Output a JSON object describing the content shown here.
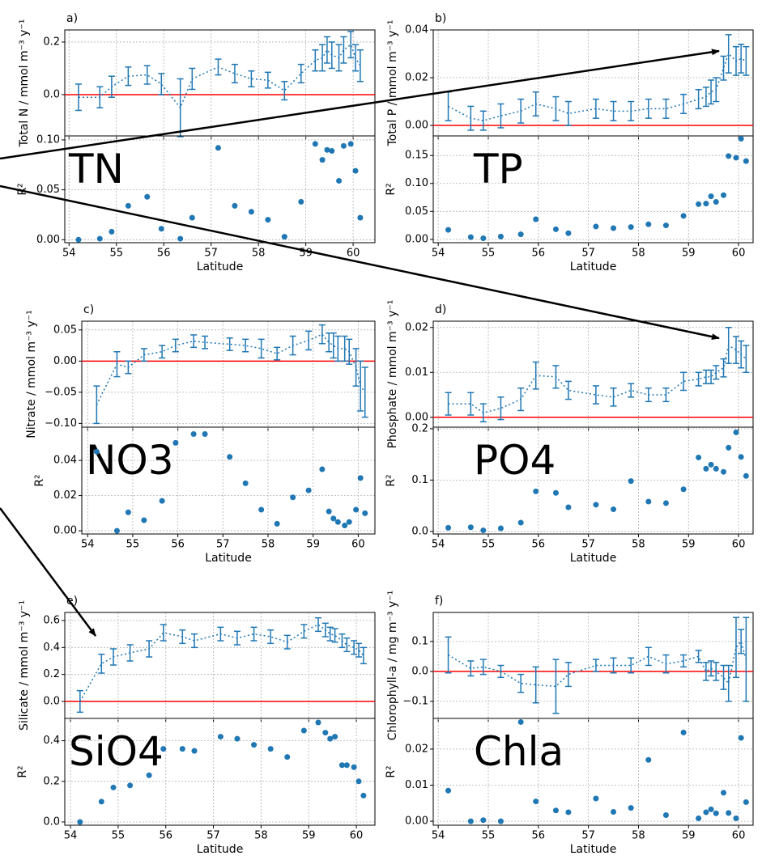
{
  "chart_data": [
    {
      "type": "errorbar",
      "panel_label": "a)",
      "ylabel": "Total N / mmol m⁻³ y⁻¹",
      "color": "#1f77b4",
      "hline": 0,
      "hline_color": "#ff0000",
      "grid": true,
      "x": [
        54.2,
        54.65,
        54.9,
        55.25,
        55.65,
        55.95,
        56.35,
        56.6,
        57.15,
        57.5,
        57.85,
        58.2,
        58.55,
        58.9,
        59.2,
        59.35,
        59.45,
        59.55,
        59.7,
        59.8,
        59.95,
        60.05,
        60.15
      ],
      "values": [
        -0.01,
        -0.01,
        0.03,
        0.07,
        0.075,
        0.04,
        -0.05,
        0.06,
        0.105,
        0.08,
        0.06,
        0.055,
        0.015,
        0.08,
        0.13,
        0.14,
        0.17,
        0.15,
        0.14,
        0.17,
        0.19,
        0.14,
        0.11
      ],
      "errors": [
        0.05,
        0.04,
        0.04,
        0.035,
        0.035,
        0.04,
        0.11,
        0.04,
        0.03,
        0.035,
        0.03,
        0.03,
        0.035,
        0.035,
        0.04,
        0.05,
        0.05,
        0.05,
        0.05,
        0.05,
        0.05,
        0.05,
        0.06
      ],
      "xlim": [
        53.91,
        60.46
      ],
      "xticks": [
        54,
        55,
        56,
        57,
        58,
        59,
        60
      ],
      "ylim": [
        -0.157,
        0.246
      ],
      "yticks": [
        {
          "value": 0,
          "label": "0.0"
        },
        0.2
      ]
    },
    {
      "type": "scatter",
      "ylabel": "R²",
      "xlabel": "Latitude",
      "annotation": "TN",
      "color": "#1f77b4",
      "grid": true,
      "x": [
        54.2,
        54.65,
        54.9,
        55.25,
        55.65,
        55.95,
        56.35,
        56.6,
        57.15,
        57.5,
        57.85,
        58.2,
        58.55,
        58.9,
        59.2,
        59.35,
        59.45,
        59.55,
        59.7,
        59.8,
        59.95,
        60.05,
        60.15
      ],
      "values": [
        0.0,
        0.001,
        0.008,
        0.034,
        0.043,
        0.011,
        0.001,
        0.022,
        0.092,
        0.034,
        0.028,
        0.02,
        0.003,
        0.038,
        0.096,
        0.08,
        0.09,
        0.089,
        0.059,
        0.094,
        0.096,
        0.069,
        0.022
      ],
      "xlim": [
        53.91,
        60.46
      ],
      "xticks": [
        54,
        55,
        56,
        57,
        58,
        59,
        60
      ],
      "ylim": [
        -0.003,
        0.104
      ],
      "yticks": [
        {
          "value": 0,
          "label": "0.00"
        },
        0.05,
        {
          "value": 0.1,
          "label": "0.10"
        }
      ]
    },
    {
      "type": "errorbar",
      "panel_label": "b)",
      "ylabel": "Total P / mmol m⁻³ y⁻¹",
      "color": "#1f77b4",
      "hline": 0,
      "hline_color": "#ff0000",
      "grid": true,
      "x": [
        54.2,
        54.65,
        54.9,
        55.25,
        55.65,
        55.95,
        56.35,
        56.6,
        57.15,
        57.5,
        57.85,
        58.2,
        58.55,
        58.9,
        59.2,
        59.35,
        59.45,
        59.55,
        59.7,
        59.8,
        59.95,
        60.05,
        60.15
      ],
      "values": [
        0.008,
        0.003,
        0.002,
        0.004,
        0.006,
        0.009,
        0.007,
        0.005,
        0.007,
        0.006,
        0.006,
        0.007,
        0.007,
        0.009,
        0.011,
        0.012,
        0.014,
        0.015,
        0.024,
        0.03,
        0.027,
        0.028,
        0.027
      ],
      "errors": [
        0.006,
        0.005,
        0.004,
        0.005,
        0.005,
        0.005,
        0.005,
        0.005,
        0.004,
        0.004,
        0.004,
        0.004,
        0.004,
        0.004,
        0.004,
        0.004,
        0.005,
        0.005,
        0.005,
        0.008,
        0.006,
        0.006,
        0.006
      ],
      "xlim": [
        53.9,
        60.29
      ],
      "xticks": [
        54,
        55,
        56,
        57,
        58,
        59,
        60
      ],
      "ylim": [
        -0.0044,
        0.04
      ],
      "yticks": [
        {
          "value": 0,
          "label": "0.00"
        },
        0.02,
        0.04
      ]
    },
    {
      "type": "scatter",
      "ylabel": "R²",
      "xlabel": "Latitude",
      "annotation": "TP",
      "color": "#1f77b4",
      "grid": true,
      "x": [
        54.2,
        54.65,
        54.9,
        55.25,
        55.65,
        55.95,
        56.35,
        56.6,
        57.15,
        57.5,
        57.85,
        58.2,
        58.55,
        58.9,
        59.2,
        59.35,
        59.45,
        59.55,
        59.7,
        59.8,
        59.95,
        60.05,
        60.15
      ],
      "values": [
        0.017,
        0.004,
        0.002,
        0.005,
        0.009,
        0.036,
        0.018,
        0.011,
        0.023,
        0.02,
        0.022,
        0.027,
        0.025,
        0.042,
        0.063,
        0.064,
        0.077,
        0.067,
        0.079,
        0.149,
        0.146,
        0.18,
        0.14
      ],
      "xlim": [
        53.9,
        60.29
      ],
      "xticks": [
        54,
        55,
        56,
        57,
        58,
        59,
        60
      ],
      "ylim": [
        -0.006,
        0.185
      ],
      "yticks": [
        {
          "value": 0,
          "label": "0.00"
        },
        0.05,
        {
          "value": 0.1,
          "label": "0.10"
        },
        0.15
      ]
    },
    {
      "type": "errorbar",
      "panel_label": "c)",
      "ylabel": "Nitrate / mmol m⁻³ y⁻¹",
      "color": "#1f77b4",
      "hline": 0,
      "hline_color": "#ff0000",
      "grid": true,
      "x": [
        54.2,
        54.65,
        54.9,
        55.25,
        55.65,
        55.95,
        56.35,
        56.6,
        57.15,
        57.5,
        57.85,
        58.2,
        58.55,
        58.9,
        59.2,
        59.35,
        59.45,
        59.55,
        59.7,
        59.8,
        59.95,
        60.05,
        60.15
      ],
      "values": [
        -0.07,
        -0.005,
        -0.01,
        0.01,
        0.015,
        0.025,
        0.032,
        0.03,
        0.027,
        0.025,
        0.02,
        0.012,
        0.025,
        0.033,
        0.043,
        0.03,
        0.025,
        0.02,
        0.02,
        0.015,
        -0.01,
        -0.04,
        -0.05
      ],
      "errors": [
        0.03,
        0.02,
        0.01,
        0.01,
        0.01,
        0.01,
        0.01,
        0.01,
        0.01,
        0.01,
        0.015,
        0.01,
        0.015,
        0.015,
        0.015,
        0.015,
        0.02,
        0.02,
        0.02,
        0.02,
        0.03,
        0.04,
        0.04
      ],
      "xlim": [
        53.87,
        60.37
      ],
      "xticks": [
        54,
        55,
        56,
        57,
        58,
        59,
        60
      ],
      "ylim": [
        -0.106,
        0.064
      ],
      "yticks": [
        {
          "value": -0.1,
          "label": "−0.10"
        },
        {
          "value": -0.05,
          "label": "−0.05"
        },
        {
          "value": 0,
          "label": "0.00"
        },
        0.05
      ]
    },
    {
      "type": "scatter",
      "ylabel": "R²",
      "xlabel": "Latitude",
      "annotation": "NO3",
      "color": "#1f77b4",
      "grid": true,
      "x": [
        54.2,
        54.65,
        54.9,
        55.25,
        55.65,
        55.95,
        56.35,
        56.6,
        57.15,
        57.5,
        57.85,
        58.2,
        58.55,
        58.9,
        59.2,
        59.35,
        59.45,
        59.55,
        59.7,
        59.8,
        59.95,
        60.05,
        60.15
      ],
      "values": [
        0.045,
        0.0,
        0.0105,
        0.006,
        0.017,
        0.05,
        0.055,
        0.055,
        0.042,
        0.027,
        0.012,
        0.004,
        0.019,
        0.023,
        0.035,
        0.011,
        0.007,
        0.005,
        0.003,
        0.005,
        0.012,
        0.03,
        0.01
      ],
      "xlim": [
        53.87,
        60.37
      ],
      "xticks": [
        54,
        55,
        56,
        57,
        58,
        59,
        60
      ],
      "ylim": [
        -0.0018,
        0.0589
      ],
      "yticks": [
        {
          "value": 0,
          "label": "0.00"
        },
        0.02,
        0.04
      ]
    },
    {
      "type": "errorbar",
      "panel_label": "d)",
      "ylabel": "Phosphate / mmol m⁻³ y⁻¹",
      "color": "#1f77b4",
      "hline": 0,
      "hline_color": "#ff0000",
      "grid": true,
      "x": [
        54.2,
        54.65,
        54.9,
        55.25,
        55.65,
        55.95,
        56.35,
        56.6,
        57.15,
        57.5,
        57.85,
        58.2,
        58.55,
        58.9,
        59.2,
        59.35,
        59.45,
        59.55,
        59.7,
        59.8,
        59.95,
        60.05,
        60.15
      ],
      "values": [
        0.003,
        0.003,
        0.001,
        0.002,
        0.004,
        0.0093,
        0.009,
        0.006,
        0.005,
        0.0045,
        0.006,
        0.005,
        0.005,
        0.008,
        0.0085,
        0.009,
        0.009,
        0.01,
        0.011,
        0.016,
        0.015,
        0.014,
        0.013
      ],
      "errors": [
        0.0025,
        0.0025,
        0.002,
        0.0025,
        0.0025,
        0.003,
        0.0025,
        0.002,
        0.002,
        0.002,
        0.0015,
        0.0015,
        0.0015,
        0.002,
        0.0015,
        0.0015,
        0.0015,
        0.0015,
        0.002,
        0.004,
        0.003,
        0.003,
        0.003
      ],
      "xlim": [
        53.9,
        60.29
      ],
      "xticks": [
        54,
        55,
        56,
        57,
        58,
        59,
        60
      ],
      "ylim": [
        -0.0022,
        0.0214
      ],
      "yticks": [
        {
          "value": 0,
          "label": "0.00"
        },
        0.01,
        0.02
      ]
    },
    {
      "type": "scatter",
      "ylabel": "R²",
      "xlabel": "Latitude",
      "annotation": "PO4",
      "color": "#1f77b4",
      "grid": true,
      "x": [
        54.2,
        54.65,
        54.9,
        55.25,
        55.65,
        55.95,
        56.35,
        56.6,
        57.15,
        57.5,
        57.85,
        58.2,
        58.55,
        58.9,
        59.2,
        59.35,
        59.45,
        59.55,
        59.7,
        59.8,
        59.95,
        60.05,
        60.15
      ],
      "values": [
        0.007,
        0.008,
        0.002,
        0.006,
        0.017,
        0.078,
        0.075,
        0.047,
        0.052,
        0.043,
        0.098,
        0.058,
        0.055,
        0.082,
        0.144,
        0.122,
        0.13,
        0.122,
        0.116,
        0.163,
        0.193,
        0.145,
        0.108
      ],
      "xlim": [
        53.9,
        60.29
      ],
      "xticks": [
        54,
        55,
        56,
        57,
        58,
        59,
        60
      ],
      "ylim": [
        -0.005,
        0.203
      ],
      "yticks": [
        {
          "value": 0,
          "label": "0.0"
        },
        0.1,
        0.2
      ]
    },
    {
      "type": "errorbar",
      "panel_label": "e)",
      "ylabel": "Silicate / mmol m⁻³ y⁻¹",
      "color": "#1f77b4",
      "hline": 0,
      "hline_color": "#ff0000",
      "grid": true,
      "x": [
        54.2,
        54.65,
        54.9,
        55.25,
        55.65,
        55.95,
        56.35,
        56.6,
        57.15,
        57.5,
        57.85,
        58.2,
        58.55,
        58.9,
        59.2,
        59.35,
        59.45,
        59.55,
        59.7,
        59.8,
        59.95,
        60.05,
        60.15
      ],
      "values": [
        0.0,
        0.28,
        0.33,
        0.36,
        0.39,
        0.51,
        0.48,
        0.45,
        0.5,
        0.47,
        0.5,
        0.48,
        0.44,
        0.52,
        0.57,
        0.53,
        0.5,
        0.49,
        0.45,
        0.42,
        0.4,
        0.38,
        0.34
      ],
      "errors": [
        0.08,
        0.07,
        0.06,
        0.06,
        0.06,
        0.06,
        0.05,
        0.05,
        0.05,
        0.05,
        0.05,
        0.05,
        0.05,
        0.05,
        0.05,
        0.05,
        0.05,
        0.05,
        0.05,
        0.05,
        0.05,
        0.05,
        0.06
      ],
      "xlim": [
        53.88,
        60.39
      ],
      "xticks": [
        54,
        55,
        56,
        57,
        58,
        59,
        60
      ],
      "ylim": [
        -0.126,
        0.66
      ],
      "yticks": [
        {
          "value": 0,
          "label": "0.0"
        },
        0.2,
        0.4,
        0.6
      ]
    },
    {
      "type": "scatter",
      "ylabel": "R²",
      "xlabel": "Latitude",
      "annotation": "SiO4",
      "color": "#1f77b4",
      "grid": true,
      "x": [
        54.2,
        54.65,
        54.9,
        55.25,
        55.65,
        55.95,
        56.35,
        56.6,
        57.15,
        57.5,
        57.85,
        58.2,
        58.55,
        58.9,
        59.2,
        59.35,
        59.45,
        59.55,
        59.7,
        59.8,
        59.95,
        60.05,
        60.15
      ],
      "values": [
        0.0,
        0.1,
        0.17,
        0.18,
        0.23,
        0.36,
        0.36,
        0.35,
        0.42,
        0.41,
        0.38,
        0.36,
        0.32,
        0.45,
        0.49,
        0.44,
        0.41,
        0.42,
        0.28,
        0.28,
        0.27,
        0.2,
        0.13
      ],
      "xlim": [
        53.88,
        60.39
      ],
      "xticks": [
        54,
        55,
        56,
        57,
        58,
        59,
        60
      ],
      "ylim": [
        -0.016,
        0.51
      ],
      "yticks": [
        {
          "value": 0,
          "label": "0.0"
        },
        0.2,
        0.4
      ]
    },
    {
      "type": "errorbar",
      "panel_label": "f)",
      "ylabel": "Chlorophyll-a / mg m⁻³ y⁻¹",
      "color": "#1f77b4",
      "hline": 0,
      "hline_color": "#ff0000",
      "grid": true,
      "x": [
        54.2,
        54.65,
        54.9,
        55.25,
        55.65,
        55.95,
        56.35,
        56.6,
        57.15,
        57.5,
        57.85,
        58.2,
        58.55,
        58.9,
        59.2,
        59.35,
        59.45,
        59.55,
        59.7,
        59.8,
        59.95,
        60.05,
        60.15
      ],
      "values": [
        0.055,
        0.01,
        0.015,
        0.0,
        -0.04,
        -0.045,
        -0.05,
        -0.01,
        0.02,
        0.02,
        0.02,
        0.05,
        0.025,
        0.035,
        0.05,
        0.0,
        0.01,
        0.0,
        -0.02,
        -0.04,
        0.08,
        0.1,
        0.04
      ],
      "errors": [
        0.06,
        0.025,
        0.025,
        0.02,
        0.03,
        0.06,
        0.09,
        0.04,
        0.02,
        0.025,
        0.025,
        0.03,
        0.03,
        0.02,
        0.02,
        0.03,
        0.025,
        0.03,
        0.04,
        0.06,
        0.1,
        0.04,
        0.14
      ],
      "xlim": [
        53.9,
        60.29
      ],
      "xticks": [
        54,
        55,
        56,
        57,
        58,
        59,
        60
      ],
      "ylim": [
        -0.157,
        0.197
      ],
      "yticks": [
        {
          "value": -0.1,
          "label": "−0.1"
        },
        {
          "value": 0,
          "label": "0.0"
        },
        0.1
      ]
    },
    {
      "type": "scatter",
      "ylabel": "R²",
      "xlabel": "Latitude",
      "annotation": "Chla",
      "color": "#1f77b4",
      "grid": true,
      "x": [
        54.2,
        54.65,
        54.9,
        55.25,
        55.65,
        55.95,
        56.35,
        56.6,
        57.15,
        57.5,
        57.85,
        58.2,
        58.55,
        58.9,
        59.2,
        59.35,
        59.45,
        59.55,
        59.7,
        59.8,
        59.95,
        60.05,
        60.15
      ],
      "values": [
        0.0085,
        0.0,
        0.0003,
        0.0,
        0.0275,
        0.0055,
        0.003,
        0.0025,
        0.0063,
        0.0026,
        0.0037,
        0.017,
        0.0017,
        0.0246,
        0.0008,
        0.0025,
        0.0033,
        0.0022,
        0.0079,
        0.0023,
        0.0008,
        0.0231,
        0.0053
      ],
      "xlim": [
        53.9,
        60.29
      ],
      "xticks": [
        54,
        55,
        56,
        57,
        58,
        59,
        60
      ],
      "ylim": [
        -0.0011,
        0.0285
      ],
      "yticks": [
        {
          "value": 0,
          "label": "0.00"
        },
        0.01,
        0.02
      ]
    }
  ]
}
